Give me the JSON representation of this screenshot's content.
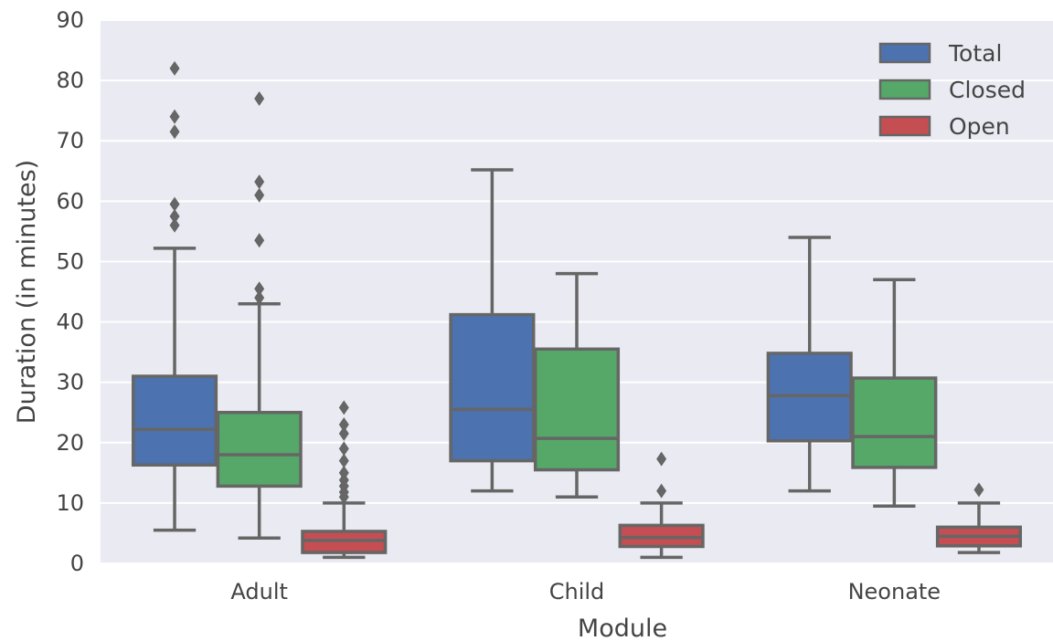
{
  "chart_data": {
    "type": "box",
    "xlabel": "Module",
    "ylabel": "Duration (in minutes)",
    "ylim": [
      0,
      90
    ],
    "yticks": [
      0,
      10,
      20,
      30,
      40,
      50,
      60,
      70,
      80,
      90
    ],
    "grid": true,
    "legend_position": "top-right",
    "categories": [
      "Adult",
      "Child",
      "Neonate"
    ],
    "series": [
      {
        "name": "Total",
        "color": "#4c72b0",
        "boxes": [
          {
            "whislo": 5.5,
            "q1": 16.3,
            "med": 22.2,
            "q3": 31.0,
            "whishi": 52.2,
            "fliers": [
              56,
              57.5,
              59.5,
              71.5,
              74,
              82
            ]
          },
          {
            "whislo": 12.0,
            "q1": 17.0,
            "med": 25.5,
            "q3": 41.2,
            "whishi": 65.2,
            "fliers": []
          },
          {
            "whislo": 12.0,
            "q1": 20.3,
            "med": 27.8,
            "q3": 34.8,
            "whishi": 54.0,
            "fliers": []
          }
        ]
      },
      {
        "name": "Closed",
        "color": "#55a868",
        "boxes": [
          {
            "whislo": 4.2,
            "q1": 12.8,
            "med": 18.0,
            "q3": 25.0,
            "whishi": 43.0,
            "fliers": [
              44,
              45.5,
              53.5,
              61,
              63.2,
              77
            ]
          },
          {
            "whislo": 11.0,
            "q1": 15.5,
            "med": 20.7,
            "q3": 35.5,
            "whishi": 48.0,
            "fliers": []
          },
          {
            "whislo": 9.5,
            "q1": 15.9,
            "med": 21.0,
            "q3": 30.7,
            "whishi": 47.0,
            "fliers": []
          }
        ]
      },
      {
        "name": "Open",
        "color": "#c44e52",
        "boxes": [
          {
            "whislo": 1.0,
            "q1": 1.8,
            "med": 3.8,
            "q3": 5.3,
            "whishi": 10.0,
            "fliers": [
              11,
              11.8,
              12.8,
              13.8,
              15,
              17,
              19,
              21.5,
              23,
              25.8
            ]
          },
          {
            "whislo": 1.0,
            "q1": 2.8,
            "med": 4.3,
            "q3": 6.3,
            "whishi": 10.0,
            "fliers": [
              12,
              17.3
            ]
          },
          {
            "whislo": 1.8,
            "q1": 2.9,
            "med": 4.5,
            "q3": 6.0,
            "whishi": 10.0,
            "fliers": [
              12.2
            ]
          }
        ]
      }
    ]
  }
}
